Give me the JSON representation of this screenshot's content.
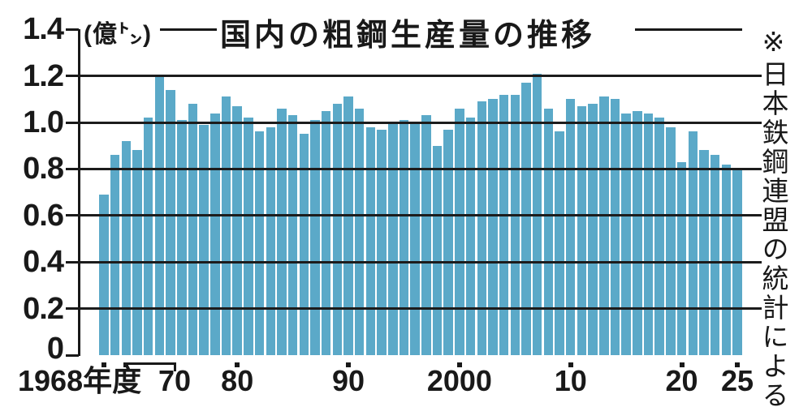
{
  "header": {
    "unit_label": "(億㌧)",
    "title": "国内の粗鋼生産量の推移",
    "source_note": "※日本鉄鋼連盟の統計による"
  },
  "y_axis": {
    "ticks": [
      {
        "value": 1.4,
        "label": "1.4"
      },
      {
        "value": 1.2,
        "label": "1.2"
      },
      {
        "value": 1.0,
        "label": "1.0"
      },
      {
        "value": 0.8,
        "label": "0.8"
      },
      {
        "value": 0.6,
        "label": "0.6"
      },
      {
        "value": 0.4,
        "label": "0.4"
      },
      {
        "value": 0.2,
        "label": "0.2"
      },
      {
        "value": 0,
        "label": "0"
      }
    ]
  },
  "x_axis": {
    "unit_note": "年度",
    "ticks": [
      {
        "year": 1968,
        "label": "1968年度"
      },
      {
        "year": 1970,
        "label": "70"
      },
      {
        "year": 1980,
        "label": "80"
      },
      {
        "year": 1990,
        "label": "90"
      },
      {
        "year": 2000,
        "label": "2000"
      },
      {
        "year": 2010,
        "label": "10"
      },
      {
        "year": 2020,
        "label": "20"
      },
      {
        "year": 2025,
        "label": "25"
      }
    ]
  },
  "chart_data": {
    "type": "bar",
    "title": "国内の粗鋼生産量の推移",
    "unit": "億トン",
    "source": "※日本鉄鋼連盟の統計による",
    "ylim": [
      0,
      1.4
    ],
    "y_tick_step": 0.2,
    "gridlines": [
      0.2,
      0.4,
      0.6,
      0.8,
      1.0,
      1.2
    ],
    "legend": "none",
    "bar_color": "#5BA9C8",
    "years": [
      1968,
      1969,
      1970,
      1971,
      1972,
      1973,
      1974,
      1975,
      1976,
      1977,
      1978,
      1979,
      1980,
      1981,
      1982,
      1983,
      1984,
      1985,
      1986,
      1987,
      1988,
      1989,
      1990,
      1991,
      1992,
      1993,
      1994,
      1995,
      1996,
      1997,
      1998,
      1999,
      2000,
      2001,
      2002,
      2003,
      2004,
      2005,
      2006,
      2007,
      2008,
      2009,
      2010,
      2011,
      2012,
      2013,
      2014,
      2015,
      2016,
      2017,
      2018,
      2019,
      2020,
      2021,
      2022,
      2023,
      2024,
      2025
    ],
    "values": [
      0.69,
      0.86,
      0.92,
      0.88,
      1.02,
      1.2,
      1.14,
      1.01,
      1.08,
      0.99,
      1.04,
      1.11,
      1.07,
      1.02,
      0.96,
      0.98,
      1.06,
      1.03,
      0.95,
      1.01,
      1.05,
      1.08,
      1.11,
      1.06,
      0.98,
      0.97,
      1.0,
      1.01,
      1.0,
      1.03,
      0.9,
      0.97,
      1.06,
      1.02,
      1.09,
      1.1,
      1.12,
      1.12,
      1.17,
      1.21,
      1.06,
      0.96,
      1.1,
      1.07,
      1.08,
      1.11,
      1.1,
      1.04,
      1.05,
      1.04,
      1.02,
      0.98,
      0.83,
      0.96,
      0.88,
      0.86,
      0.82,
      0.8
    ]
  }
}
